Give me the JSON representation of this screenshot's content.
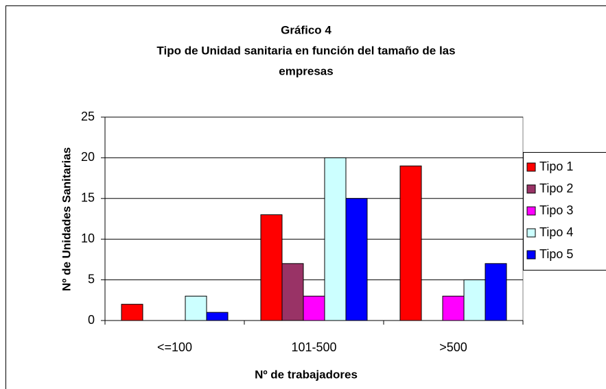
{
  "chart_data": {
    "type": "bar",
    "title": [
      "Gráfico 4",
      "Tipo de Unidad sanitaria en función del tamaño de las",
      "empresas"
    ],
    "x_label": "Nº de trabajadores",
    "y_label": "Nº de Unidades Sanitarias",
    "categories": [
      "<=100",
      "101-500",
      ">500"
    ],
    "series": [
      {
        "name": "Tipo 1",
        "color": "#ff0000",
        "values": [
          2,
          13,
          19
        ]
      },
      {
        "name": "Tipo 2",
        "color": "#993366",
        "values": [
          0,
          7,
          0
        ]
      },
      {
        "name": "Tipo 3",
        "color": "#ff00ff",
        "values": [
          0,
          3,
          3
        ]
      },
      {
        "name": "Tipo 4",
        "color": "#ccffff",
        "values": [
          3,
          20,
          5
        ]
      },
      {
        "name": "Tipo 5",
        "color": "#0000ff",
        "values": [
          1,
          15,
          7
        ]
      }
    ],
    "ylim": [
      0,
      25
    ],
    "yticks": [
      0,
      5,
      10,
      15,
      20,
      25
    ],
    "grid": true,
    "legend": "right"
  }
}
